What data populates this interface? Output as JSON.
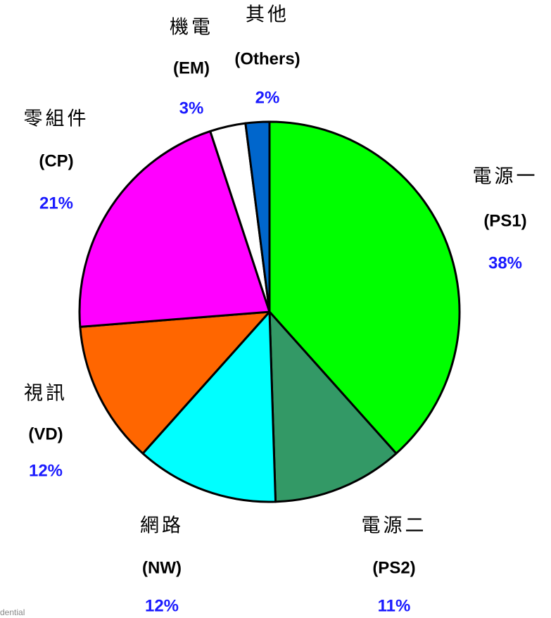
{
  "chart_data": {
    "type": "pie",
    "categories": [
      "電源一",
      "電源二",
      "網路",
      "視訊",
      "零組件",
      "機電",
      "其他"
    ],
    "codes": [
      "(PS1)",
      "(PS2)",
      "(NW)",
      "(VD)",
      "(CP)",
      "(EM)",
      "(Others)"
    ],
    "values": [
      38,
      11,
      12,
      12,
      21,
      3,
      2
    ],
    "value_labels": [
      "38%",
      "11%",
      "12%",
      "12%",
      "21%",
      "3%",
      "2%"
    ],
    "colors": [
      "#00ff00",
      "#339966",
      "#00ffff",
      "#ff6600",
      "#ff00ff",
      "#ffffff",
      "#0066cc"
    ]
  },
  "footer": "dential"
}
